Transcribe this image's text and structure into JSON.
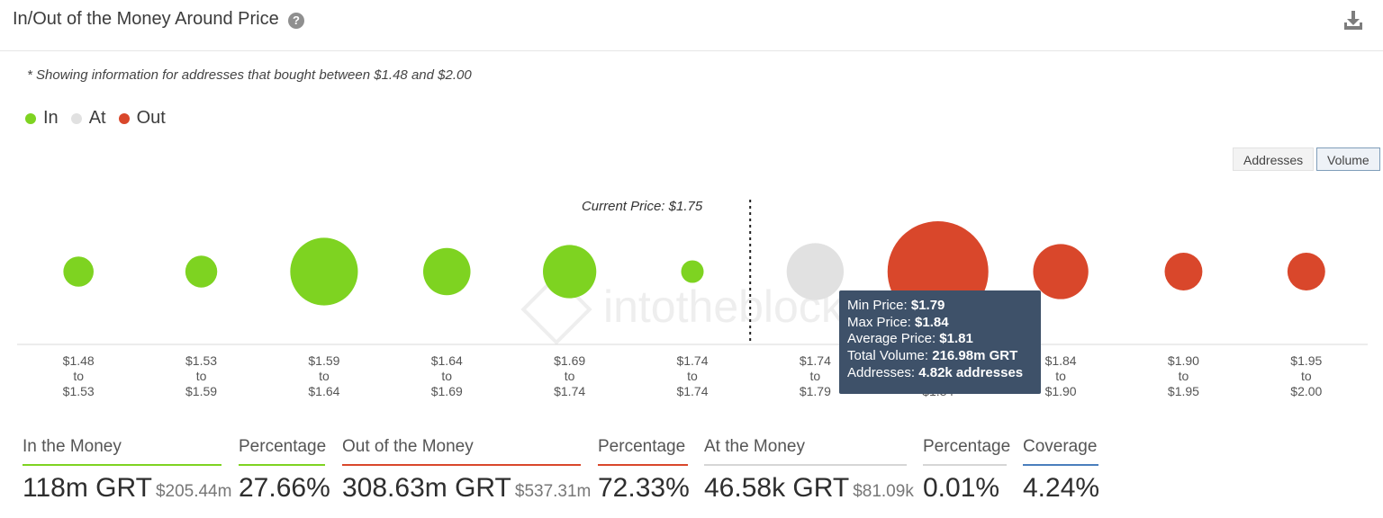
{
  "header": {
    "title": "In/Out of the Money Around Price",
    "help_icon": "?"
  },
  "note": "* Showing information for addresses that bought between $1.48 and $2.00",
  "legend": [
    {
      "label": "In",
      "color": "#7ed321"
    },
    {
      "label": "At",
      "color": "#e1e1e1"
    },
    {
      "label": "Out",
      "color": "#d9472b"
    }
  ],
  "toggles": [
    {
      "label": "Addresses",
      "active": false
    },
    {
      "label": "Volume",
      "active": true
    }
  ],
  "chart_data": {
    "type": "scatter",
    "current_price_label": "Current Price: $1.75",
    "watermark": "intotheblock",
    "categories": [
      {
        "from": "$1.48",
        "to": "$1.53",
        "status": "in",
        "relative_volume": 0.09
      },
      {
        "from": "$1.53",
        "to": "$1.59",
        "status": "in",
        "relative_volume": 0.1
      },
      {
        "from": "$1.59",
        "to": "$1.64",
        "status": "in",
        "relative_volume": 0.45
      },
      {
        "from": "$1.64",
        "to": "$1.69",
        "status": "in",
        "relative_volume": 0.22
      },
      {
        "from": "$1.69",
        "to": "$1.74",
        "status": "in",
        "relative_volume": 0.28
      },
      {
        "from": "$1.74",
        "to": "$1.74",
        "status": "in",
        "relative_volume": 0.05
      },
      {
        "from": "$1.74",
        "to": "$1.79",
        "status": "at",
        "relative_volume": 0.32
      },
      {
        "from": "$1.79",
        "to": "$1.84",
        "status": "out",
        "relative_volume": 1.0
      },
      {
        "from": "$1.84",
        "to": "$1.90",
        "status": "out",
        "relative_volume": 0.3
      },
      {
        "from": "$1.90",
        "to": "$1.95",
        "status": "out",
        "relative_volume": 0.14
      },
      {
        "from": "$1.95",
        "to": "$2.00",
        "status": "out",
        "relative_volume": 0.14
      }
    ],
    "to_word": "to"
  },
  "tooltip": {
    "min_label": "Min Price:",
    "min_value": "$1.79",
    "max_label": "Max Price:",
    "max_value": "$1.84",
    "avg_label": "Average Price:",
    "avg_value": "$1.81",
    "vol_label": "Total Volume:",
    "vol_value": "216.98m GRT",
    "addr_label": "Addresses:",
    "addr_value": "4.82k addresses"
  },
  "stats": {
    "in_money": {
      "label": "In the Money",
      "value": "118m GRT",
      "sub": "$205.44m",
      "color": "#7ed321"
    },
    "in_pct": {
      "label": "Percentage",
      "value": "27.66%",
      "color": "#7ed321"
    },
    "out_money": {
      "label": "Out of the Money",
      "value": "308.63m GRT",
      "sub": "$537.31m",
      "color": "#d9472b"
    },
    "out_pct": {
      "label": "Percentage",
      "value": "72.33%",
      "color": "#d9472b"
    },
    "at_money": {
      "label": "At the Money",
      "value": "46.58k GRT",
      "sub": "$81.09k",
      "color": "#d6d6d6"
    },
    "at_pct": {
      "label": "Percentage",
      "value": "0.01%",
      "color": "#d6d6d6"
    },
    "coverage": {
      "label": "Coverage",
      "value": "4.24%",
      "color": "#4a7fbd"
    }
  }
}
